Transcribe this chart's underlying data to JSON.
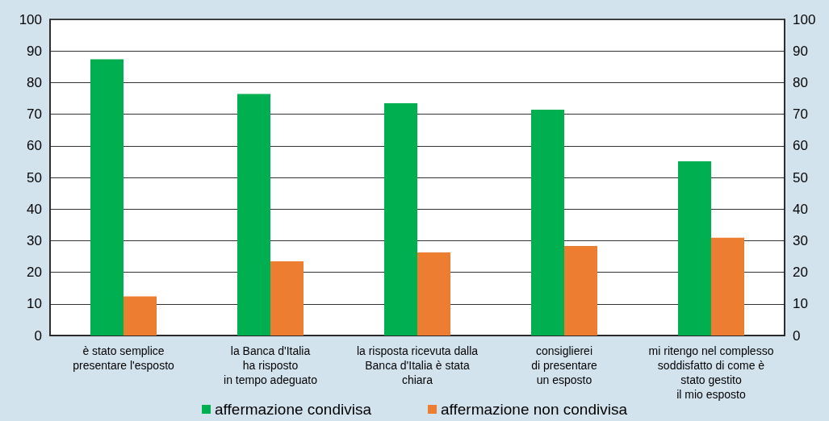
{
  "chart_data": {
    "type": "bar",
    "categories": [
      "è stato semplice\npresentare l'esposto",
      "la Banca d'Italia\nha risposto\nin tempo adeguato",
      "la risposta ricevuta dalla\nBanca d'Italia è stata\nchiara",
      "consiglierei\ndi presentare\nun esposto",
      "mi ritengo nel complesso\nsoddisfatto di come è\nstato gestito\nil mio esposto"
    ],
    "series": [
      {
        "name": "affermazione condivisa",
        "color": "#00b050",
        "values": [
          87.4,
          76.4,
          73.5,
          71.4,
          55.1
        ]
      },
      {
        "name": "affermazione non condivisa",
        "color": "#ed7d31",
        "values": [
          12.4,
          23.5,
          26.3,
          28.3,
          30.9
        ]
      }
    ],
    "ylim": [
      0,
      100
    ],
    "yticks": [
      0,
      10,
      20,
      30,
      40,
      50,
      60,
      70,
      80,
      90,
      100
    ],
    "y2lim": [
      0,
      100
    ],
    "y2ticks": [
      0,
      10,
      20,
      30,
      40,
      50,
      60,
      70,
      80,
      90,
      100
    ],
    "grid": "y",
    "legend": "bottom"
  }
}
